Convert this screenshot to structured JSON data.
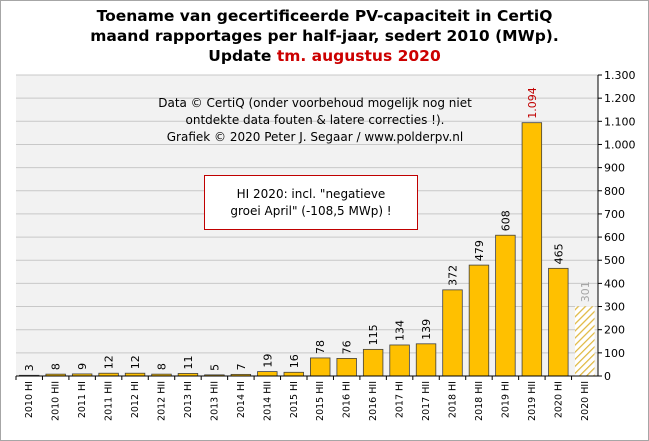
{
  "title": {
    "line1": "Toename van gecertificeerde PV-capaciteit in CertiQ",
    "line2": "maand rapportages per half-jaar, sedert 2010 (MWp).",
    "line3_prefix": "Update ",
    "line3_highlight": "tm. augustus 2020"
  },
  "notes": {
    "credit_line1": "Data © CertiQ (onder voorbehoud mogelijk  nog niet",
    "credit_line2": "ontdekte data fouten & latere correcties !).",
    "credit_line3": "Grafiek  © 2020  Peter J. Segaar / www.polderpv.nl",
    "callout_line1": "HI 2020:  incl. \"negatieve",
    "callout_line2": "groei April\"  (-108,5 MWp) !"
  },
  "colors": {
    "bar": "#ffc000",
    "bar_edge": "#404040",
    "partial_hatch": "#e0b840",
    "highlight_label": "#c00000",
    "partial_label": "#a6a6a6",
    "plot_bg": "#f2f2f2",
    "grid": "#c8c8c8"
  },
  "chart_data": {
    "type": "bar",
    "categories": [
      "2010 HI",
      "2010 HII",
      "2011 HI",
      "2011 HII",
      "2012 HI",
      "2012 HII",
      "2013 HI",
      "2013 HII",
      "2014 HI",
      "2014 HII",
      "2015 HI",
      "2015 HII",
      "2016 HI",
      "2016 HII",
      "2017 HI",
      "2017 HII",
      "2018 HI",
      "2018 HII",
      "2019 HI",
      "2019 HII",
      "2020 HI",
      "2020 HII"
    ],
    "values": [
      3,
      8,
      9,
      12,
      12,
      8,
      11,
      5,
      7,
      19,
      16,
      78,
      76,
      115,
      134,
      139,
      372,
      479,
      608,
      1094,
      465,
      301
    ],
    "value_labels": [
      "3",
      "8",
      "9",
      "12",
      "12",
      "8",
      "11",
      "5",
      "7",
      "19",
      "16",
      "78",
      "76",
      "115",
      "134",
      "139",
      "372",
      "479",
      "608",
      "1.094",
      "465",
      "301"
    ],
    "highlight_index": 19,
    "partial_index": 21,
    "ylim": [
      0,
      1300
    ],
    "yticks": [
      0,
      100,
      200,
      300,
      400,
      500,
      600,
      700,
      800,
      900,
      1000,
      1100,
      1200,
      1300
    ],
    "ytick_labels": [
      "0",
      "100",
      "200",
      "300",
      "400",
      "500",
      "600",
      "700",
      "800",
      "900",
      "1.000",
      "1.100",
      "1.200",
      "1.300"
    ],
    "y_axis_side": "right",
    "grid": true,
    "legend": "none"
  }
}
